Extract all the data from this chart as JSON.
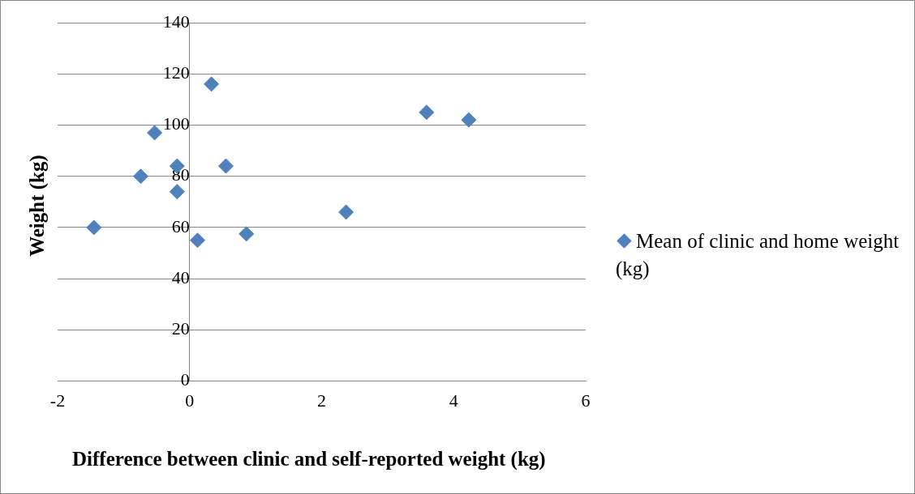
{
  "chart_data": {
    "type": "scatter",
    "xlabel": "Difference between clinic and self-reported weight (kg)",
    "ylabel": "Weight (kg)",
    "series": [
      {
        "name": "Mean of clinic and home weight (kg)",
        "color": "#4f81bd",
        "x": [
          -1.45,
          -0.74,
          -0.53,
          -0.19,
          -0.19,
          0.12,
          0.33,
          0.55,
          0.86,
          2.37,
          3.59,
          4.23
        ],
        "values": [
          60,
          80,
          97,
          84,
          74,
          55,
          116,
          84,
          57.5,
          66,
          105,
          102
        ]
      }
    ],
    "xlim": [
      -2,
      6
    ],
    "xticks": [
      -2,
      0,
      2,
      4,
      6
    ],
    "ylim": [
      0,
      140
    ],
    "yticks": [
      0,
      20,
      40,
      60,
      80,
      100,
      120,
      140
    ],
    "grid": "y",
    "legend": "right",
    "marker": "diamond"
  }
}
